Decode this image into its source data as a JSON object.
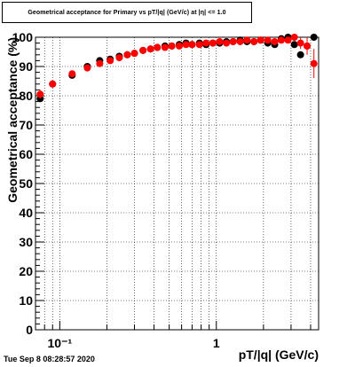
{
  "title": "Geometrical acceptance for Primary vs pT/|q| (GeV/c) at |η| <= 1.0",
  "timestamp": "Tue Sep  8 08:28:57 2020",
  "chart_data": {
    "type": "scatter",
    "title": "Geometrical acceptance for Primary vs pT/|q| (GeV/c) at |η| <= 1.0",
    "xlabel": "pT/|q| (GeV/c)",
    "ylabel": "Geometrical acceptance (%)",
    "xscale": "log",
    "xlim": [
      0.07,
      4.5
    ],
    "ylim": [
      0,
      100
    ],
    "xtick_labels": [
      "10⁻¹",
      "1"
    ],
    "ytick_labels": [
      "0",
      "10",
      "20",
      "30",
      "40",
      "50",
      "60",
      "70",
      "80",
      "90",
      "100"
    ],
    "grid": true,
    "colors": {
      "series_black": "#000000",
      "series_red": "#ff0000"
    },
    "series": [
      {
        "color": "#000000",
        "x": [
          0.075,
          0.09,
          0.12,
          0.15,
          0.18,
          0.21,
          0.24,
          0.27,
          0.3,
          0.34,
          0.38,
          0.42,
          0.47,
          0.52,
          0.58,
          0.64,
          0.7,
          0.78,
          0.86,
          0.95,
          1.05,
          1.16,
          1.28,
          1.42,
          1.57,
          1.74,
          1.92,
          2.13,
          2.36,
          2.6,
          2.87,
          3.15,
          3.45,
          3.8,
          4.2
        ],
        "y": [
          79,
          84,
          87,
          90,
          92,
          92.5,
          93.5,
          94,
          94.5,
          95.5,
          96,
          96.5,
          97,
          97,
          97.5,
          98,
          97.5,
          98,
          97.5,
          98,
          98,
          98.5,
          98.5,
          99,
          98.5,
          98.5,
          99,
          98,
          97.5,
          99.5,
          100,
          97.5,
          94,
          97,
          100
        ]
      },
      {
        "color": "#ff0000",
        "x": [
          0.075,
          0.09,
          0.12,
          0.15,
          0.18,
          0.21,
          0.24,
          0.27,
          0.3,
          0.34,
          0.38,
          0.42,
          0.47,
          0.52,
          0.58,
          0.64,
          0.7,
          0.78,
          0.86,
          0.95,
          1.05,
          1.16,
          1.28,
          1.42,
          1.57,
          1.74,
          1.92,
          2.13,
          2.36,
          2.6,
          2.87,
          3.15,
          3.45,
          3.8,
          4.2
        ],
        "y": [
          80.5,
          84,
          87.5,
          89.5,
          91,
          92,
          93,
          94,
          94.5,
          95.5,
          96,
          96.5,
          96.5,
          97,
          97,
          97.5,
          97.5,
          97.5,
          98,
          98,
          98.5,
          98,
          98.5,
          98.5,
          99,
          98.5,
          99,
          99,
          98.5,
          99,
          99,
          100,
          98,
          97,
          91
        ],
        "yerr": [
          1.5,
          1.0,
          0.8,
          0.7,
          0.6,
          0.5,
          0.5,
          0.4,
          0.4,
          0.4,
          0.4,
          0.3,
          0.3,
          0.3,
          0.3,
          0.3,
          0.3,
          0.3,
          0.3,
          0.3,
          0.4,
          0.4,
          0.4,
          0.5,
          0.5,
          0.5,
          0.6,
          0.7,
          0.8,
          0.9,
          1.0,
          1.2,
          2.0,
          3.0,
          5.0
        ]
      }
    ]
  }
}
